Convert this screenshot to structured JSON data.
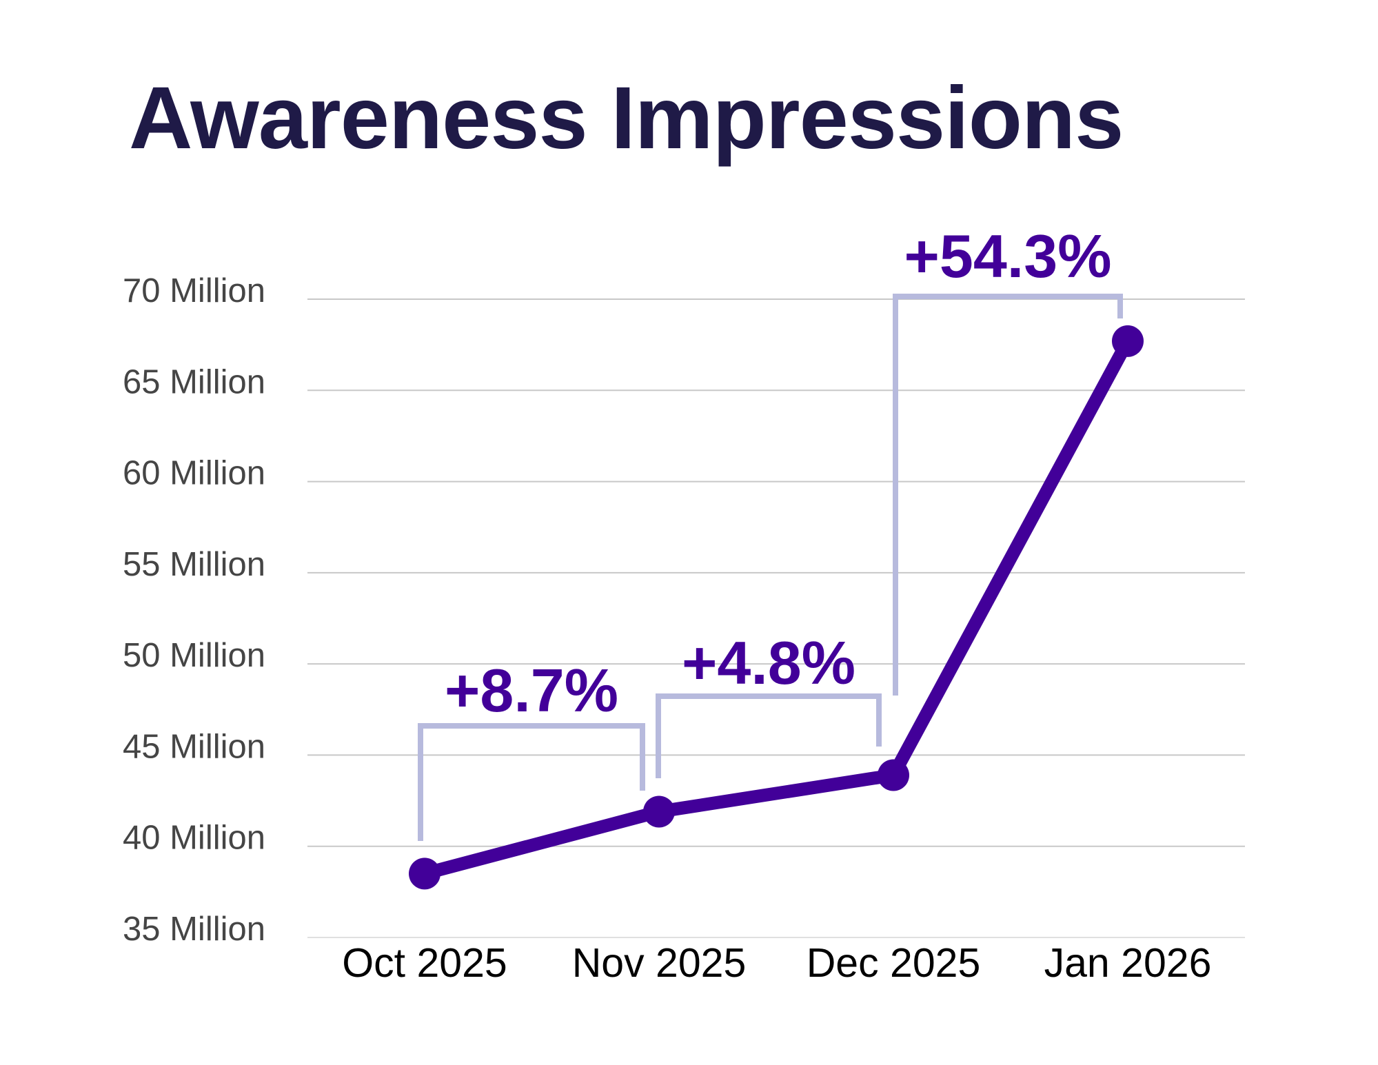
{
  "chart_data": {
    "type": "line",
    "title": "Awareness Impressions",
    "xlabel": "",
    "ylabel": "",
    "categories": [
      "Oct 2025",
      "Nov 2025",
      "Dec 2025",
      "Jan 2026"
    ],
    "series": [
      {
        "name": "Awareness Impressions",
        "values": [
          38.5,
          41.9,
          43.9,
          67.7
        ],
        "unit": "Million"
      }
    ],
    "ylim": [
      35,
      70
    ],
    "y_ticks": [
      35,
      40,
      45,
      50,
      55,
      60,
      65,
      70
    ],
    "y_tick_labels": [
      "35 Million",
      "40 Million",
      "45 Million",
      "50 Million",
      "55 Million",
      "60 Million",
      "65 Million",
      "70 Million"
    ],
    "grid": true,
    "legend": "none",
    "annotations": [
      {
        "from": "Oct 2025",
        "to": "Nov 2025",
        "label": "+8.7%"
      },
      {
        "from": "Nov 2025",
        "to": "Dec 2025",
        "label": "+4.8%"
      },
      {
        "from": "Dec 2025",
        "to": "Jan 2026",
        "label": "+54.3%"
      }
    ],
    "colors": {
      "title": "#1f1a47",
      "line": "#420099",
      "annotation": "#420099",
      "bracket": "#b7badd",
      "grid": "#c8c8c8",
      "axis_text": "#454545",
      "x_text": "#000000"
    }
  }
}
